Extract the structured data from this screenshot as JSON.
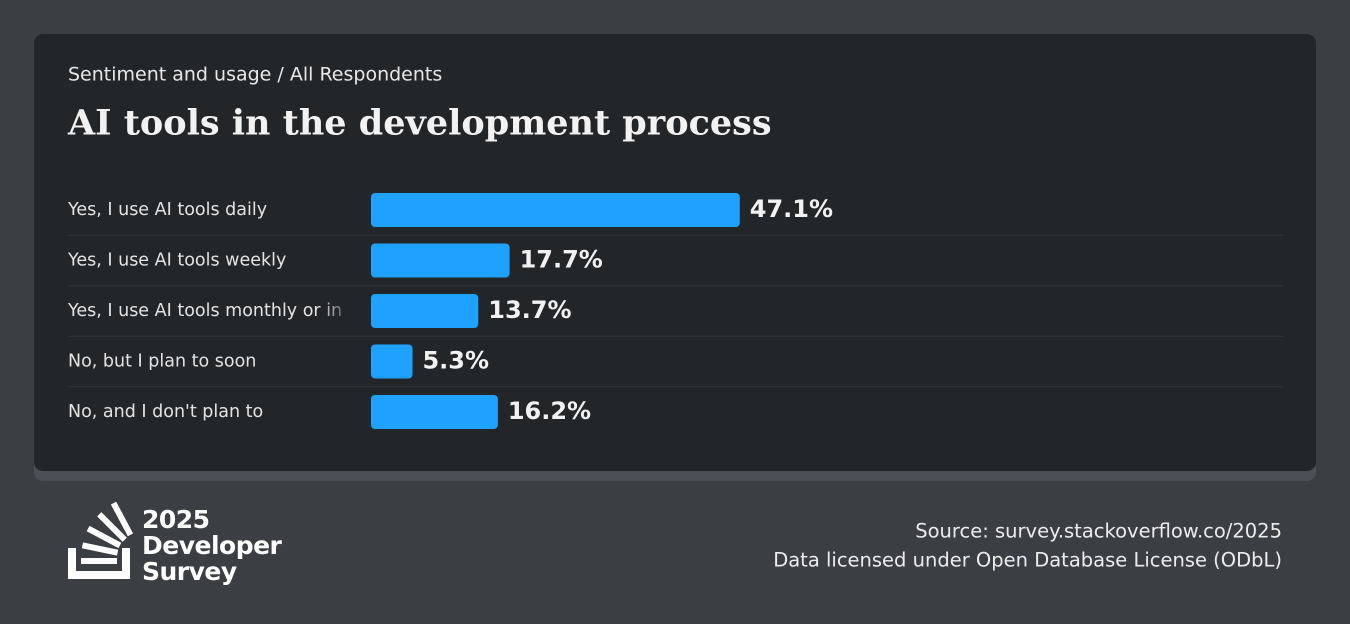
{
  "chart_data": {
    "type": "bar",
    "orientation": "horizontal",
    "subtitle": "Sentiment and usage / All Respondents",
    "title": "AI tools in the development process",
    "categories": [
      "Yes, I use AI tools daily",
      "Yes, I use AI tools weekly",
      "Yes, I use AI tools monthly or in",
      "No, but I plan to soon",
      "No, and I don't plan to"
    ],
    "values": [
      47.1,
      17.7,
      13.7,
      5.3,
      16.2
    ],
    "value_labels": [
      "47.1%",
      "17.7%",
      "13.7%",
      "5.3%",
      "16.2%"
    ],
    "color": "#1ea1ff"
  },
  "footer": {
    "logo": [
      "2025",
      "Developer",
      "Survey"
    ],
    "source": "Source: survey.stackoverflow.co/2025",
    "license": "Data licensed under Open Database License (ODbL)"
  }
}
